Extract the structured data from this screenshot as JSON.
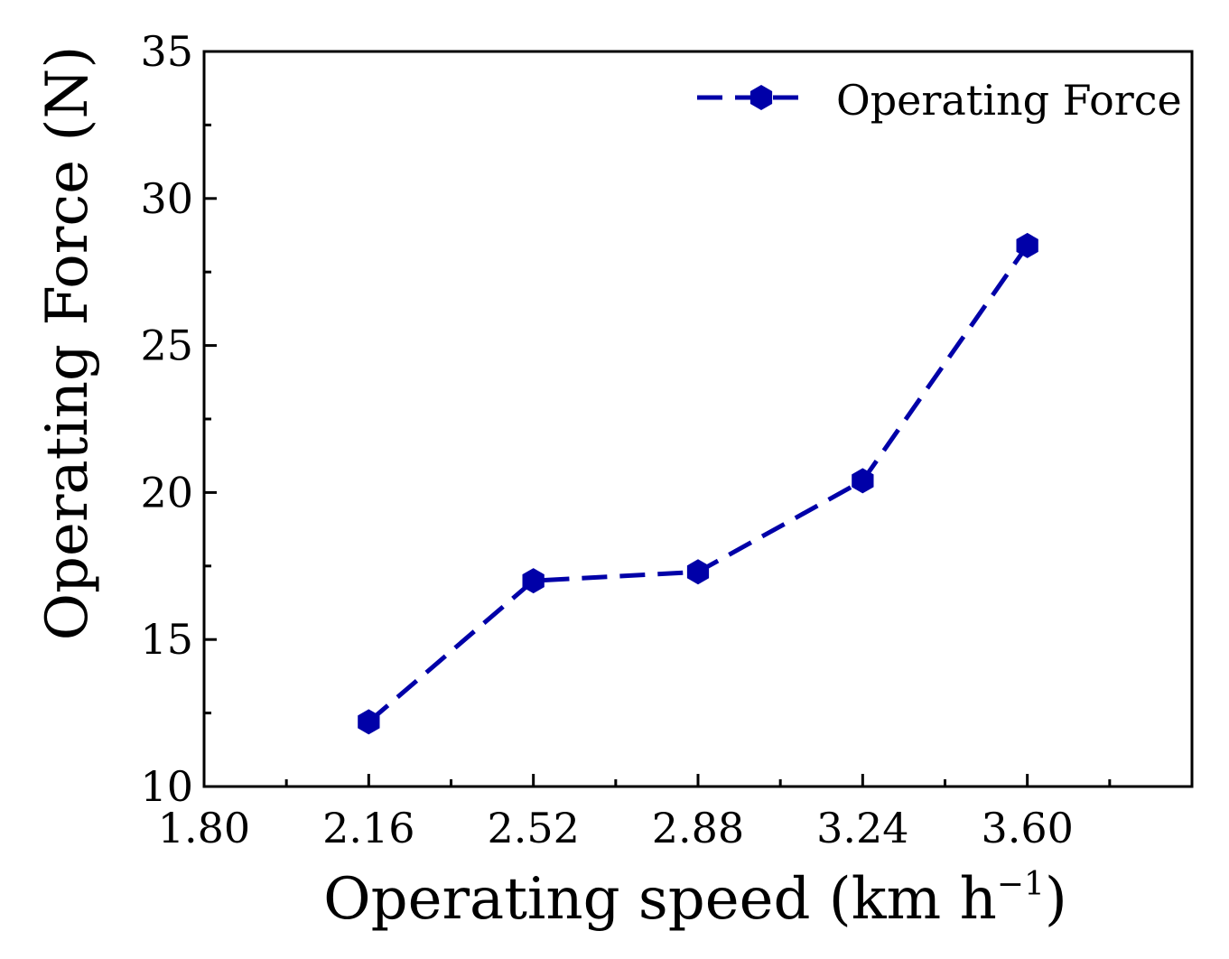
{
  "chart_data": {
    "type": "line",
    "title": "",
    "xlabel": "Operating speed (km h",
    "xlabel_sup": "−1",
    "xlabel_close": ")",
    "ylabel": "Operating Force (N)",
    "xlim": [
      1.8,
      3.96
    ],
    "ylim": [
      10,
      35
    ],
    "x_ticks": [
      "1.80",
      "2.16",
      "2.52",
      "2.88",
      "3.24",
      "3.60"
    ],
    "y_ticks": [
      "10",
      "15",
      "20",
      "25",
      "30",
      "35"
    ],
    "x_tick_values": [
      1.8,
      2.16,
      2.52,
      2.88,
      3.24,
      3.6
    ],
    "y_tick_values": [
      10,
      15,
      20,
      25,
      30,
      35
    ],
    "legend_position": "top-right",
    "series": [
      {
        "name": "Operating Force",
        "color": "#0000a8",
        "line_style": "dashed",
        "marker": "hexagon",
        "x": [
          2.16,
          2.52,
          2.88,
          3.24,
          3.6
        ],
        "values": [
          12.2,
          17.0,
          17.3,
          20.4,
          28.4
        ]
      }
    ]
  }
}
